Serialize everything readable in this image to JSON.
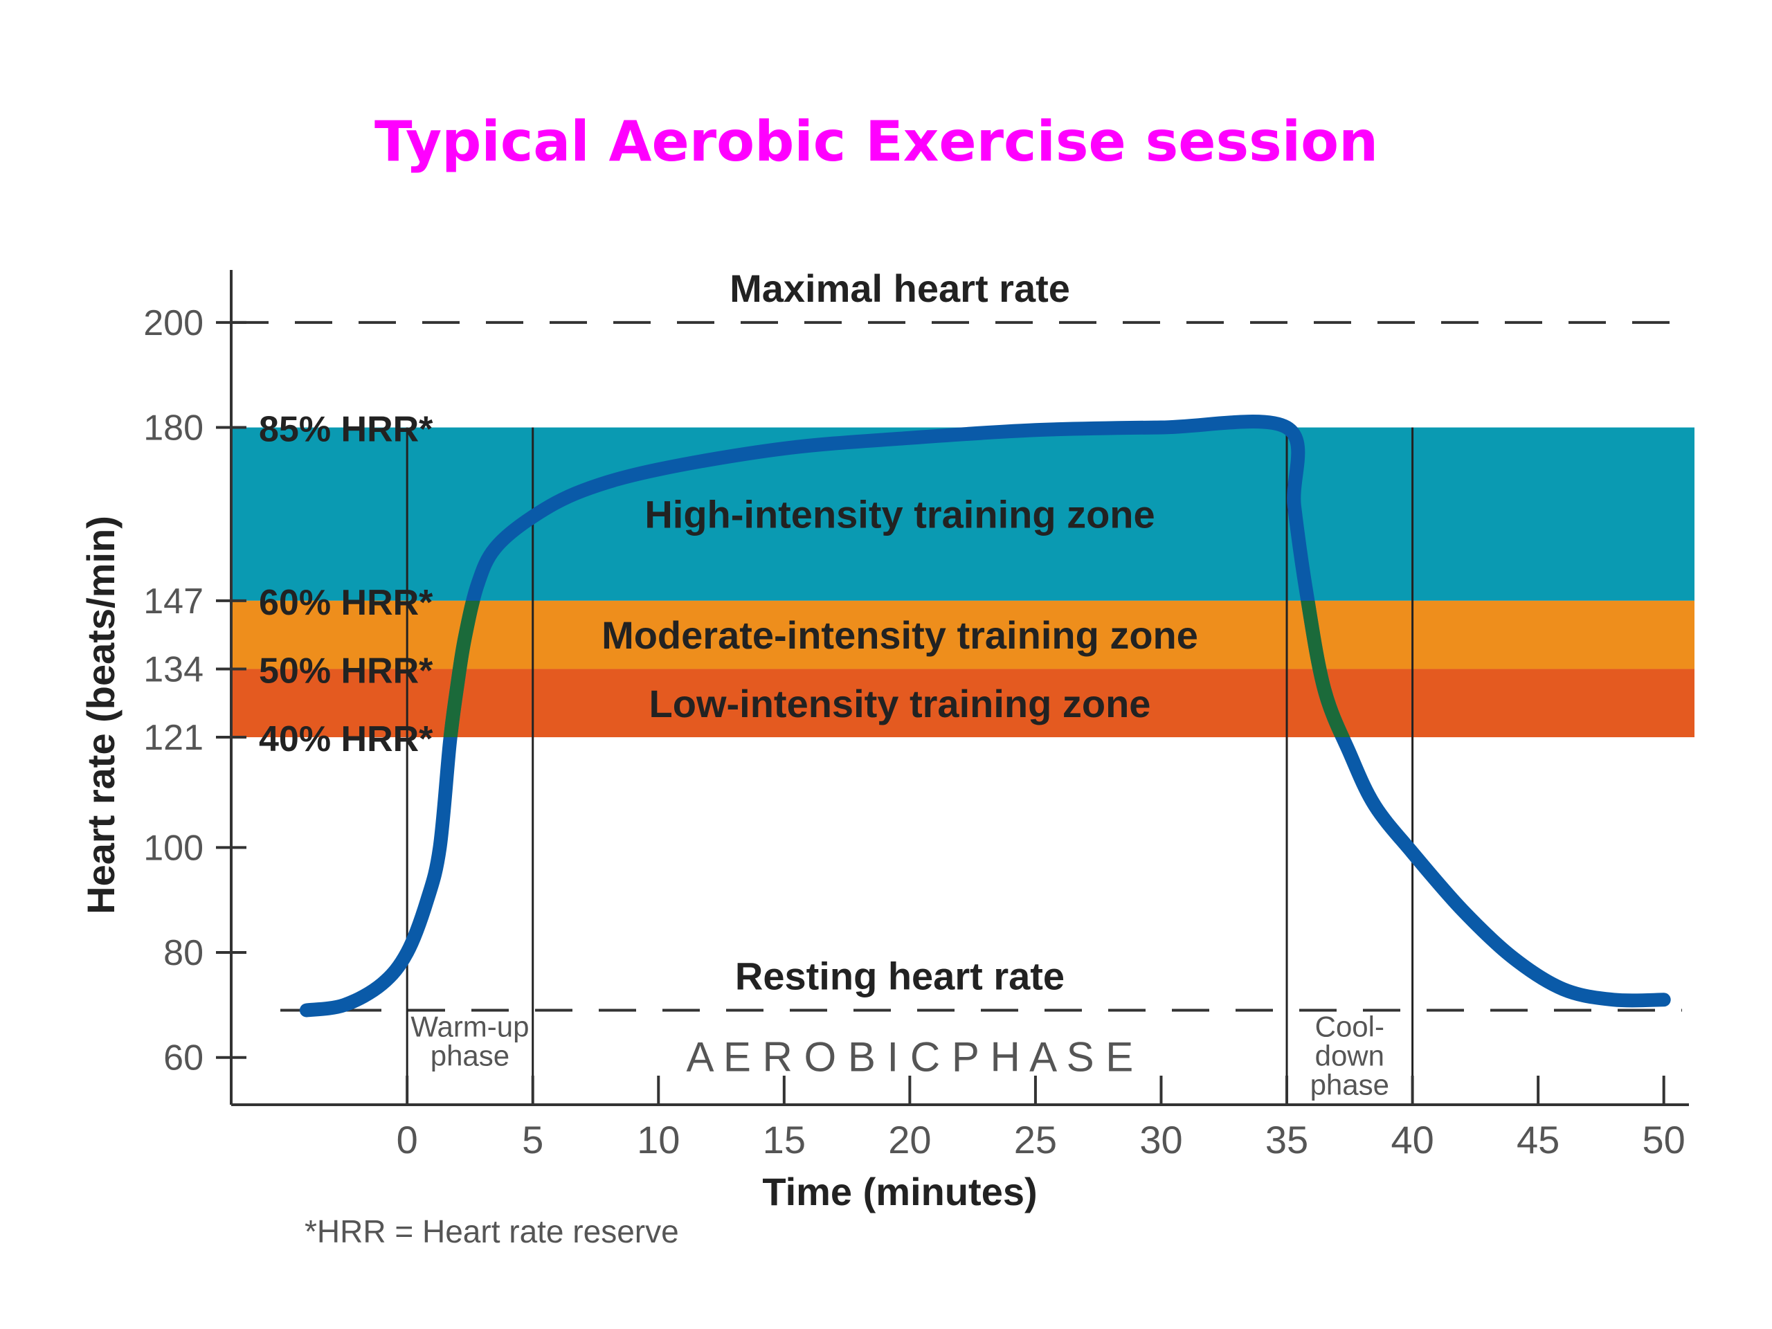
{
  "title": "Typical Aerobic Exercise session",
  "colors": {
    "title": "#ff00ff",
    "high_zone": "#0a9ab2",
    "moderate_zone": "#ee8e1c",
    "low_zone": "#e45a20",
    "curve": "#0a5aa8",
    "curve_in_zone": "#1b6a3a",
    "axis": "#333333",
    "text": "#222222",
    "muted_text": "#555555"
  },
  "chart_data": {
    "type": "line",
    "xlabel": "Time (minutes)",
    "ylabel": "Heart rate (beats/min)",
    "xlim": [
      -7,
      51
    ],
    "ylim": [
      51,
      210
    ],
    "x_ticks": [
      0,
      5,
      10,
      15,
      20,
      25,
      30,
      35,
      40,
      45,
      50
    ],
    "y_ticks": [
      60,
      80,
      100,
      121,
      134,
      147,
      180,
      200
    ],
    "reference_lines": [
      {
        "label": "Maximal heart rate",
        "y": 200
      },
      {
        "label": "Resting heart rate",
        "y": 69
      }
    ],
    "zones": [
      {
        "label": "High-intensity training zone",
        "y0": 147,
        "y1": 180,
        "color_key": "high_zone"
      },
      {
        "label": "Moderate-intensity training zone",
        "y0": 134,
        "y1": 147,
        "color_key": "moderate_zone"
      },
      {
        "label": "Low-intensity training zone",
        "y0": 121,
        "y1": 134,
        "color_key": "low_zone"
      }
    ],
    "zone_boundary_labels": [
      {
        "y": 180,
        "label": "85% HRR*"
      },
      {
        "y": 147,
        "label": "60% HRR*"
      },
      {
        "y": 134,
        "label": "50% HRR*"
      },
      {
        "y": 121,
        "label": "40% HRR*"
      }
    ],
    "phase_lines": [
      0,
      5,
      35,
      40
    ],
    "phases": [
      {
        "label_lines": [
          "Warm-up",
          "phase"
        ],
        "x_from": 0,
        "x_to": 5
      },
      {
        "label_lines": [
          "A E R O B I C   P H A S E"
        ],
        "x_from": 5,
        "x_to": 35
      },
      {
        "label_lines": [
          "Cool-",
          "down",
          "phase"
        ],
        "x_from": 35,
        "x_to": 40
      }
    ],
    "series": [
      {
        "x": [
          -4,
          -2.5,
          -1,
          0,
          0.8,
          1.3,
          1.7,
          2.0,
          2.3,
          2.8,
          3.5,
          5,
          7,
          10,
          15,
          20,
          25,
          30,
          35,
          35.3,
          35.8,
          36.5,
          37.5,
          38.5,
          40,
          42,
          44,
          46,
          48,
          50
        ],
        "y": [
          69,
          70,
          74,
          80,
          90,
          100,
          120,
          131,
          140,
          150,
          157,
          163,
          168,
          172,
          176,
          178,
          179.5,
          180,
          180,
          165,
          148,
          130,
          118,
          108,
          99,
          88,
          79,
          73,
          71,
          71
        ]
      }
    ],
    "footnote": "*HRR = Heart rate reserve"
  }
}
